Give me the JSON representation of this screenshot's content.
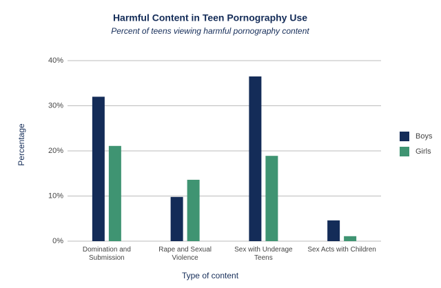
{
  "chart_data": {
    "type": "bar",
    "title": "Harmful Content in Teen Pornography Use",
    "subtitle": "Percent of teens viewing harmful pornography content",
    "x_label": "Type of content",
    "y_label": "Percentage",
    "categories": [
      "Domination and Submission",
      "Rape and Sexual Violence",
      "Sex with Underage Teens",
      "Sex Acts with Children"
    ],
    "series": [
      {
        "name": "Boys",
        "color": "#142c58",
        "values": [
          32,
          9.8,
          36.5,
          4.6
        ]
      },
      {
        "name": "Girls",
        "color": "#3f9472",
        "values": [
          21.1,
          13.6,
          18.9,
          1.1
        ]
      }
    ],
    "ylim": [
      0,
      40
    ],
    "yticks": [
      {
        "value": 0,
        "label": "0%"
      },
      {
        "value": 10,
        "label": "10%"
      },
      {
        "value": 20,
        "label": "20%"
      },
      {
        "value": 30,
        "label": "30%"
      },
      {
        "value": 40,
        "label": "40%"
      }
    ],
    "grid": true,
    "legend": "right"
  }
}
